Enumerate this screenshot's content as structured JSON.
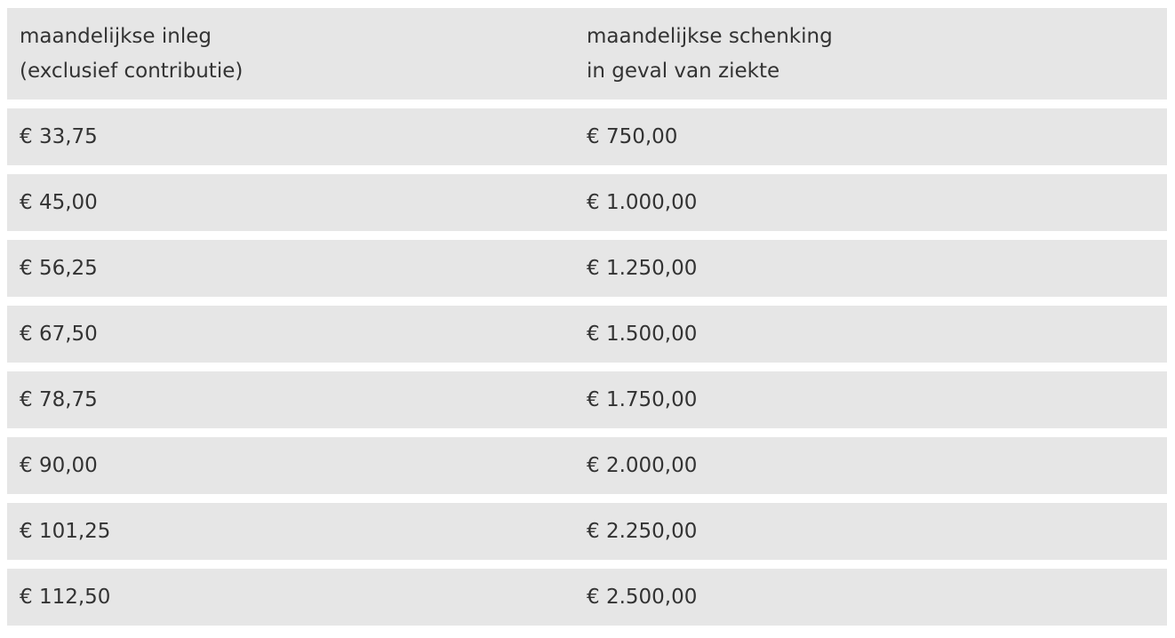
{
  "table": {
    "header": [
      [
        "maandelijkse inleg",
        "(exclusief contributie)"
      ],
      [
        "maandelijkse schenking",
        "in geval van ziekte"
      ]
    ],
    "rows": [
      [
        "€ 33,75",
        "€ 750,00"
      ],
      [
        "€ 45,00",
        "€ 1.000,00"
      ],
      [
        "€ 56,25",
        "€ 1.250,00"
      ],
      [
        "€ 67,50",
        "€ 1.500,00"
      ],
      [
        "€ 78,75",
        "€ 1.750,00"
      ],
      [
        "€ 90,00",
        "€ 2.000,00"
      ],
      [
        "€ 101,25",
        "€ 2.250,00"
      ],
      [
        "€ 112,50",
        "€ 2.500,00"
      ]
    ]
  }
}
